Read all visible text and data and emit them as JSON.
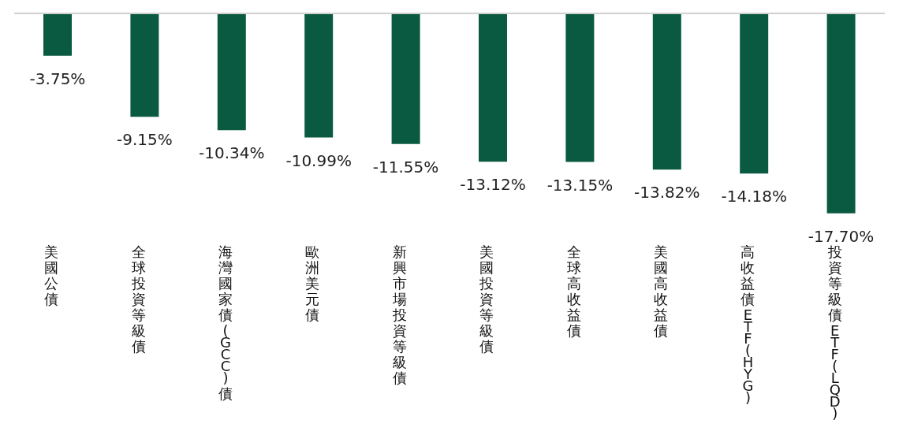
{
  "chart_data": {
    "type": "bar",
    "categories": [
      "美國公債",
      "全球投資等級債",
      "海灣國家債(GCC)債",
      "歐洲美元債",
      "新興市場投資等級債",
      "美國投資等級債",
      "全球高收益債",
      "美國高收益債",
      "高收益債ETF(HYG)",
      "投資等級債ETF(LQD)"
    ],
    "values": [
      -3.75,
      -9.15,
      -10.34,
      -10.99,
      -11.55,
      -13.12,
      -13.15,
      -13.82,
      -14.18,
      -17.7
    ],
    "value_labels": [
      "-3.75%",
      "-9.15%",
      "-10.34%",
      "-10.99%",
      "-11.55%",
      "-13.12%",
      "-13.15%",
      "-13.82%",
      "-14.18%",
      "-17.70%"
    ],
    "color": "#0a5a41",
    "grid": false,
    "legend": false
  }
}
